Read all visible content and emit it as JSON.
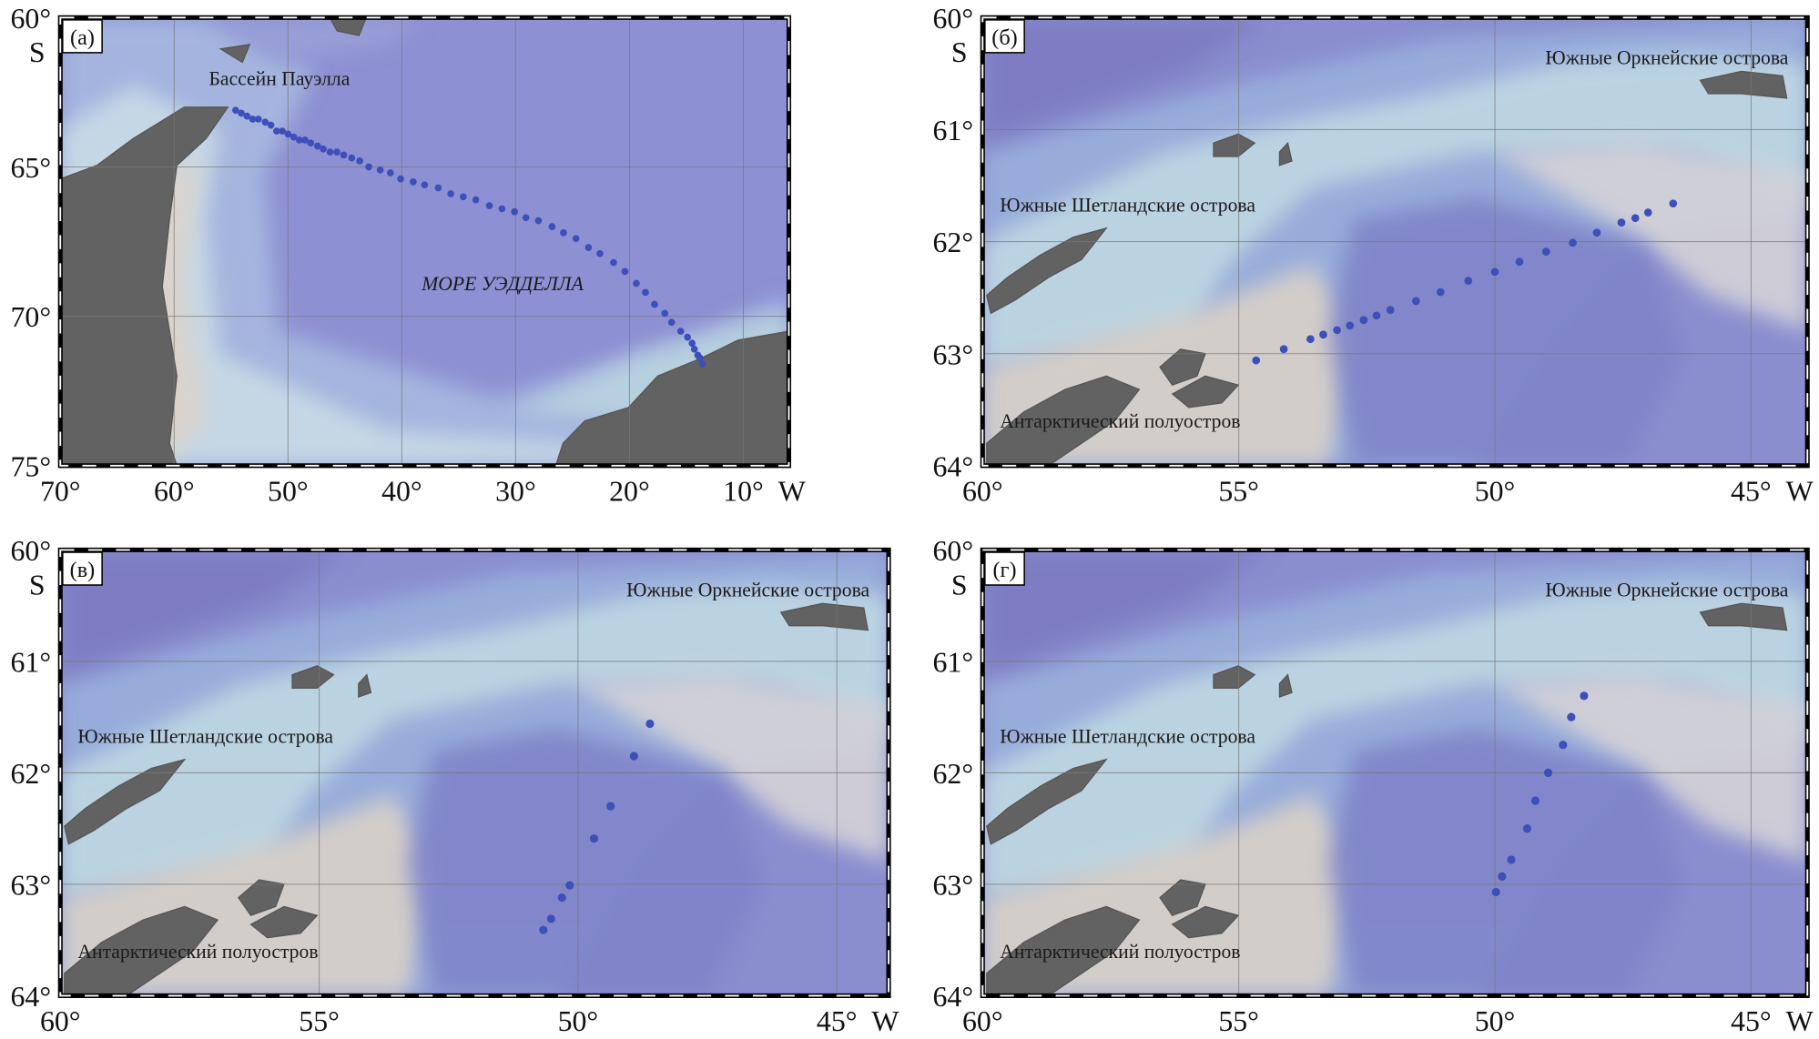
{
  "chart_data": [
    {
      "type": "scatter",
      "panel_label": "(а)",
      "annotations": [
        "Бассейн Пауэлла",
        "МОРЕ УЭДДЕЛЛА"
      ],
      "x_label": "W",
      "y_label": "S",
      "color": "#3d4fb8",
      "grid": true,
      "xlim": [
        70,
        6
      ],
      "ylim": [
        75,
        60
      ],
      "xticks": [
        {
          "value": 70,
          "label": "70°"
        },
        {
          "value": 60,
          "label": "60°"
        },
        {
          "value": 50,
          "label": "50°"
        },
        {
          "value": 40,
          "label": "40°"
        },
        {
          "value": 30,
          "label": "30°"
        },
        {
          "value": 20,
          "label": "20°"
        },
        {
          "value": 10,
          "label": "10°"
        }
      ],
      "yticks": [
        {
          "value": 60,
          "label": "60°"
        },
        {
          "value": 65,
          "label": "65°"
        },
        {
          "value": 70,
          "label": "70°"
        },
        {
          "value": 75,
          "label": "75°"
        }
      ],
      "x": [
        54.6,
        54.1,
        53.6,
        53.1,
        52.6,
        52.0,
        51.5,
        51.0,
        50.5,
        50.0,
        49.5,
        49.0,
        48.5,
        48.0,
        47.4,
        46.9,
        46.3,
        45.7,
        45.1,
        44.4,
        43.7,
        42.9,
        41.9,
        41.0,
        40.1,
        39.0,
        38.0,
        36.8,
        35.7,
        34.6,
        33.5,
        32.3,
        31.2,
        30.1,
        29.1,
        28.0,
        26.8,
        25.8,
        24.7,
        23.6,
        22.6,
        21.4,
        20.4,
        19.4,
        18.6,
        17.8,
        16.9,
        16.3,
        15.5,
        14.9,
        14.5,
        14.3,
        14.0,
        13.8,
        13.6
      ],
      "y": [
        63.1,
        63.2,
        63.3,
        63.4,
        63.4,
        63.5,
        63.6,
        63.8,
        63.8,
        63.9,
        64.0,
        64.1,
        64.1,
        64.2,
        64.3,
        64.4,
        64.5,
        64.5,
        64.6,
        64.7,
        64.8,
        65.0,
        65.1,
        65.2,
        65.4,
        65.5,
        65.6,
        65.7,
        65.9,
        66.0,
        66.1,
        66.3,
        66.4,
        66.5,
        66.7,
        66.8,
        67.0,
        67.2,
        67.4,
        67.7,
        67.9,
        68.2,
        68.5,
        68.9,
        69.2,
        69.6,
        69.9,
        70.2,
        70.5,
        70.7,
        70.9,
        71.1,
        71.3,
        71.4,
        71.6
      ]
    },
    {
      "type": "scatter",
      "panel_label": "(б)",
      "annotations": [
        "Южные Оркнейские острова",
        "Южные Шетландские острова",
        "Антарктический полуостров"
      ],
      "x_label": "W",
      "y_label": "S",
      "color": "#3d4fb8",
      "grid": true,
      "xlim": [
        60,
        43.9
      ],
      "ylim": [
        64,
        60
      ],
      "xticks": [
        {
          "value": 60,
          "label": "60°"
        },
        {
          "value": 55,
          "label": "55°"
        },
        {
          "value": 50,
          "label": "50°"
        },
        {
          "value": 45,
          "label": "45°"
        }
      ],
      "yticks": [
        {
          "value": 60,
          "label": "60°"
        },
        {
          "value": 61,
          "label": "61°"
        },
        {
          "value": 62,
          "label": "62°"
        },
        {
          "value": 63,
          "label": "63°"
        },
        {
          "value": 64,
          "label": "64°"
        }
      ],
      "x": [
        54.66,
        54.12,
        53.6,
        53.35,
        53.08,
        52.83,
        52.56,
        52.31,
        52.04,
        51.54,
        51.06,
        50.52,
        50.0,
        49.52,
        49.0,
        48.48,
        48.01,
        47.53,
        47.26,
        47.01,
        46.52
      ],
      "y": [
        63.06,
        62.96,
        62.87,
        62.83,
        62.79,
        62.75,
        62.7,
        62.66,
        62.61,
        62.53,
        62.45,
        62.35,
        62.27,
        62.18,
        62.09,
        62.01,
        61.92,
        61.83,
        61.79,
        61.74,
        61.66
      ]
    },
    {
      "type": "scatter",
      "panel_label": "(в)",
      "annotations": [
        "Южные Оркнейские острова",
        "Южные Шетландские острова",
        "Антарктический полуостров"
      ],
      "x_label": "W",
      "y_label": "S",
      "color": "#3d4fb8",
      "grid": true,
      "xlim": [
        60,
        44
      ],
      "ylim": [
        64,
        60
      ],
      "xticks": [
        {
          "value": 60,
          "label": "60°"
        },
        {
          "value": 55,
          "label": "55°"
        },
        {
          "value": 50,
          "label": "50°"
        },
        {
          "value": 45,
          "label": "45°"
        }
      ],
      "yticks": [
        {
          "value": 60,
          "label": "60°"
        },
        {
          "value": 61,
          "label": "61°"
        },
        {
          "value": 62,
          "label": "62°"
        },
        {
          "value": 63,
          "label": "63°"
        },
        {
          "value": 64,
          "label": "64°"
        }
      ],
      "x": [
        48.61,
        48.92,
        49.37,
        49.69,
        50.16,
        50.31,
        50.52,
        50.67
      ],
      "y": [
        61.56,
        61.85,
        62.3,
        62.59,
        63.01,
        63.12,
        63.31,
        63.41
      ]
    },
    {
      "type": "scatter",
      "panel_label": "(г)",
      "annotations": [
        "Южные Оркнейские острова",
        "Южные Шетландские острова",
        "Антарктический полуостров"
      ],
      "x_label": "W",
      "y_label": "S",
      "color": "#3d4fb8",
      "grid": true,
      "xlim": [
        60,
        43.9
      ],
      "ylim": [
        64,
        60
      ],
      "xticks": [
        {
          "value": 60,
          "label": "60°"
        },
        {
          "value": 55,
          "label": "55°"
        },
        {
          "value": 50,
          "label": "50°"
        },
        {
          "value": 45,
          "label": "45°"
        }
      ],
      "yticks": [
        {
          "value": 60,
          "label": "60°"
        },
        {
          "value": 61,
          "label": "61°"
        },
        {
          "value": 62,
          "label": "62°"
        },
        {
          "value": 63,
          "label": "63°"
        },
        {
          "value": 64,
          "label": "64°"
        }
      ],
      "x": [
        48.26,
        48.51,
        48.67,
        48.96,
        49.21,
        49.37,
        49.68,
        49.86,
        49.98
      ],
      "y": [
        61.31,
        61.5,
        61.75,
        62.0,
        62.25,
        62.5,
        62.78,
        62.93,
        63.07
      ]
    }
  ]
}
